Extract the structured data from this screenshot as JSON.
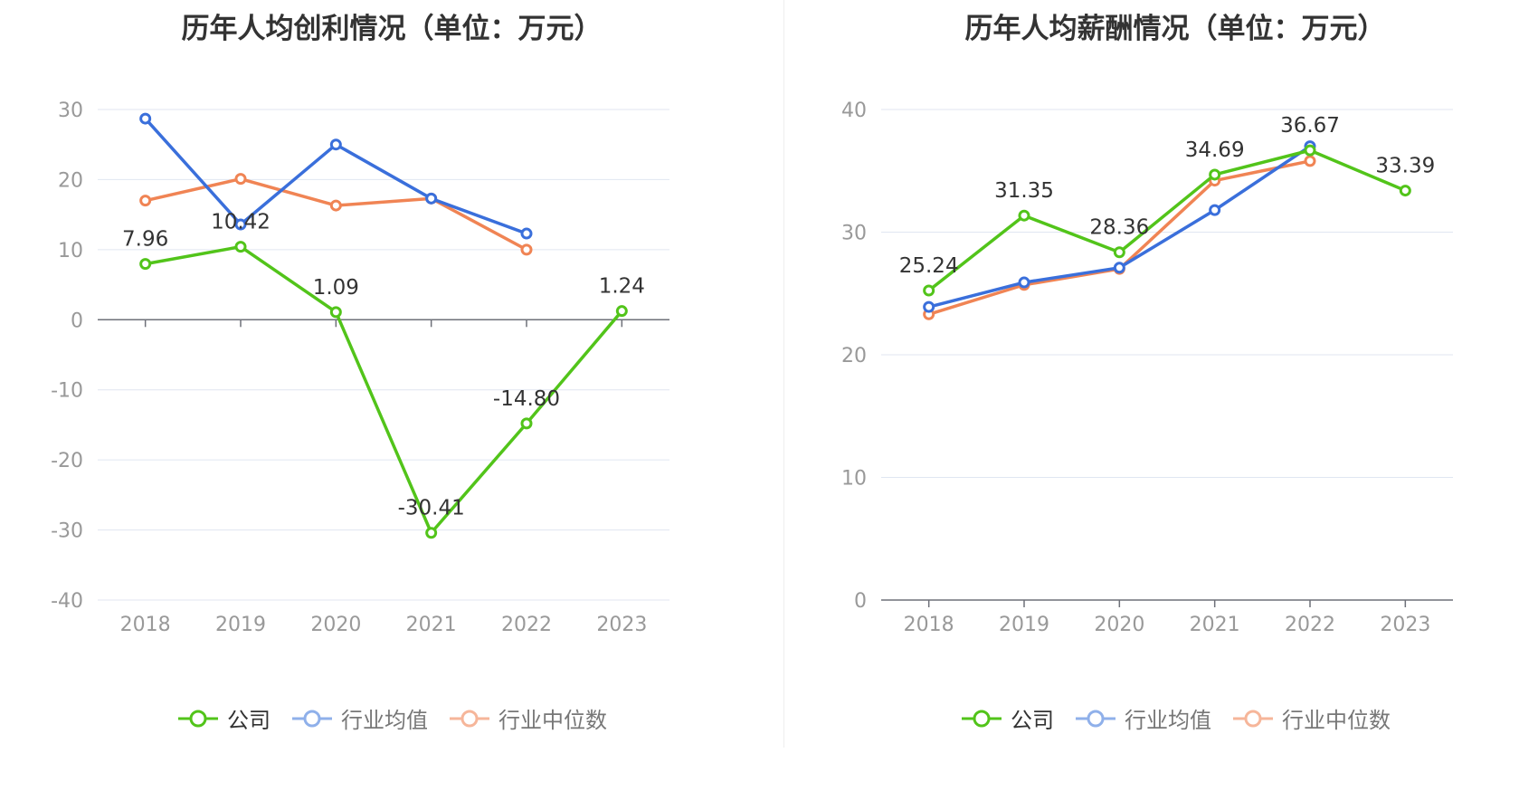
{
  "colors": {
    "company": "#52c41a",
    "industry_avg": "#3a6fdb",
    "industry_median": "#f08454",
    "grid": "#e0e6f1",
    "axis": "#6e7079",
    "label": "#999999",
    "text": "#333333"
  },
  "legend": {
    "company": "公司",
    "industry_avg": "行业均值",
    "industry_median": "行业中位数"
  },
  "chart_data": [
    {
      "type": "line",
      "title": "历年人均创利情况（单位：万元）",
      "categories": [
        "2018",
        "2019",
        "2020",
        "2021",
        "2022",
        "2023"
      ],
      "ylim": [
        -40,
        30
      ],
      "yticks": [
        30,
        20,
        10,
        0,
        -10,
        -20,
        -30,
        -40
      ],
      "grid": true,
      "legend_position": "bottom",
      "series": [
        {
          "name": "公司",
          "values": [
            7.96,
            10.42,
            1.09,
            -30.41,
            -14.8,
            1.24
          ],
          "labels": [
            "7.96",
            "10.42",
            "1.09",
            "-30.41",
            "-14.80",
            "1.24"
          ]
        },
        {
          "name": "行业均值",
          "values": [
            28.7,
            13.6,
            25.0,
            17.3,
            12.3,
            null
          ]
        },
        {
          "name": "行业中位数",
          "values": [
            17.0,
            20.1,
            16.3,
            17.3,
            10.0,
            null
          ]
        }
      ]
    },
    {
      "type": "line",
      "title": "历年人均薪酬情况（单位：万元）",
      "categories": [
        "2018",
        "2019",
        "2020",
        "2021",
        "2022",
        "2023"
      ],
      "ylim": [
        0,
        40
      ],
      "yticks": [
        40,
        30,
        20,
        10,
        0
      ],
      "grid": true,
      "legend_position": "bottom",
      "series": [
        {
          "name": "公司",
          "values": [
            25.24,
            31.35,
            28.36,
            34.69,
            36.67,
            33.39
          ],
          "labels": [
            "25.24",
            "31.35",
            "28.36",
            "34.69",
            "36.67",
            "33.39"
          ]
        },
        {
          "name": "行业均值",
          "values": [
            23.9,
            25.9,
            27.1,
            31.8,
            37.0,
            null
          ]
        },
        {
          "name": "行业中位数",
          "values": [
            23.3,
            25.7,
            27.0,
            34.2,
            35.8,
            null
          ]
        }
      ]
    }
  ]
}
